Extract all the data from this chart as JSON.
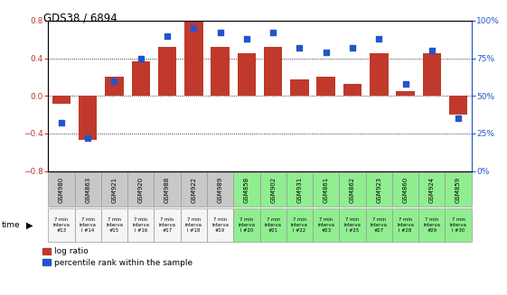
{
  "title": "GDS38 / 6894",
  "categories": [
    "GSM980",
    "GSM863",
    "GSM921",
    "GSM920",
    "GSM988",
    "GSM922",
    "GSM989",
    "GSM858",
    "GSM902",
    "GSM931",
    "GSM861",
    "GSM862",
    "GSM923",
    "GSM860",
    "GSM924",
    "GSM859"
  ],
  "time_labels": [
    "7 min\ninterva\n#13",
    "7 min\ninterva\nl #14",
    "7 min\ninterva\n#15",
    "7 min\ninterva\nl #16",
    "7 min\ninterva\n#17",
    "7 min\ninterva\nl #18",
    "7 min\ninterva\n#19",
    "7 min\ninterva\nl #20",
    "7 min\ninterva\n#21",
    "7 min\ninterva\nl #22",
    "7 min\ninterva\n#23",
    "7 min\ninterva\nl #25",
    "7 min\ninterva\n#27",
    "7 min\ninterva\nl #28",
    "7 min\ninterva\n#29",
    "7 min\ninterva\nl #30"
  ],
  "log_ratio": [
    -0.08,
    -0.47,
    0.2,
    0.37,
    0.52,
    0.79,
    0.52,
    0.45,
    0.52,
    0.18,
    0.2,
    0.13,
    0.45,
    0.05,
    0.45,
    -0.2
  ],
  "percentile": [
    32,
    22,
    60,
    75,
    90,
    95,
    92,
    88,
    92,
    82,
    79,
    82,
    88,
    58,
    80,
    35
  ],
  "ylim_left": [
    -0.8,
    0.8
  ],
  "ylim_right": [
    0,
    100
  ],
  "yticks_left": [
    -0.8,
    -0.4,
    0.0,
    0.4,
    0.8
  ],
  "yticks_right": [
    0,
    25,
    50,
    75,
    100
  ],
  "bar_color": "#c0392b",
  "dot_color": "#2255cc",
  "grid_color": "#000000",
  "legend_log": "log ratio",
  "legend_pct": "percentile rank within the sample",
  "gsm_bg_gray": "#c8c8c8",
  "gsm_bg_green": "#90ee90",
  "time_bg_white": "#f5f5f5",
  "time_bg_green": "#90ee90",
  "gray_count": 7,
  "right_axis_color": "#2255cc",
  "left_axis_color": "#c0392b"
}
